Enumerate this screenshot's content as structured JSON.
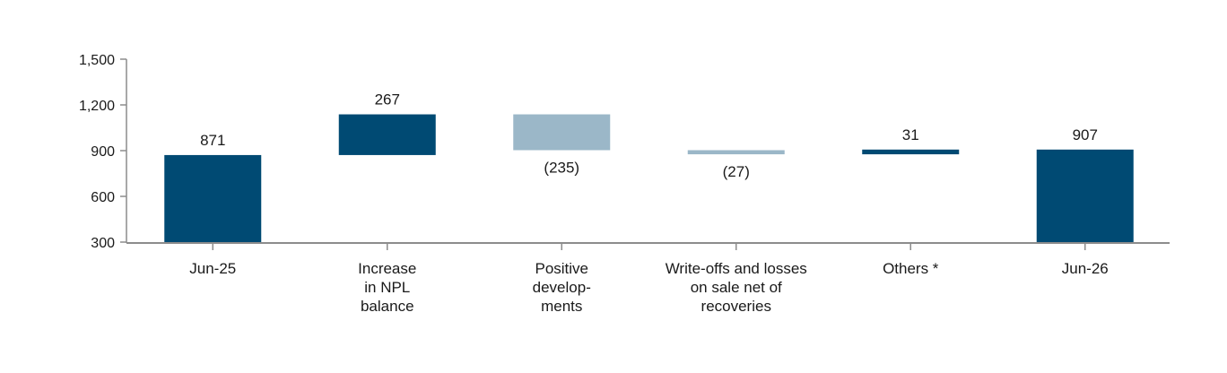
{
  "chart_data": {
    "type": "bar",
    "subtype": "waterfall",
    "categories": [
      [
        "Jun-25"
      ],
      [
        "Increase",
        "in NPL",
        "balance"
      ],
      [
        "Positive",
        "develop-",
        "ments"
      ],
      [
        "Write-offs and losses",
        "on sale net of",
        "recoveries"
      ],
      [
        "Others *"
      ],
      [
        "Jun-26"
      ]
    ],
    "values": [
      871,
      267,
      -235,
      -27,
      31,
      907
    ],
    "bar_kind": [
      "total",
      "delta",
      "delta",
      "delta",
      "delta",
      "total"
    ],
    "data_labels": [
      "871",
      "267",
      "(235)",
      "(27)",
      "31",
      "907"
    ],
    "yticks": [
      "1,500",
      "1,200",
      "900",
      "600",
      "300"
    ],
    "ytick_values": [
      1500,
      1200,
      900,
      600,
      300
    ],
    "ylim": [
      300,
      1500
    ],
    "grid": false,
    "colors": {
      "increase": "#004a73",
      "decrease": "#9bb7c8",
      "total": "#004a73",
      "axis": "#8c8c8c"
    }
  }
}
